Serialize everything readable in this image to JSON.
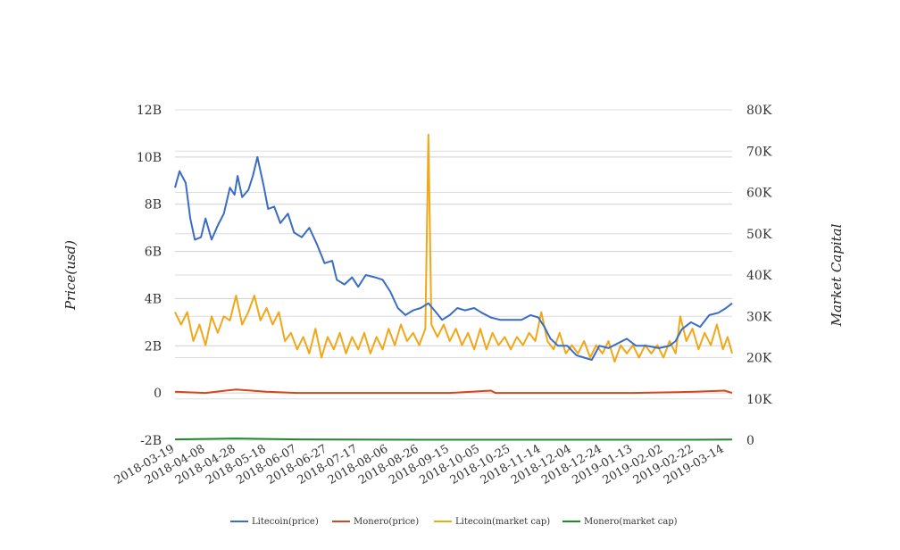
{
  "chart_data": {
    "type": "line",
    "title": "",
    "xlabel": "",
    "ylabel": "Price(usd)",
    "y2label": "Market Capital",
    "legend_position": "bottom",
    "grid": true,
    "x_ticks": [
      "2018-03-19",
      "2018-04-08",
      "2018-04-28",
      "2018-05-18",
      "2018-06-07",
      "2018-06-27",
      "2018-07-17",
      "2018-08-06",
      "2018-08-26",
      "2018-09-15",
      "2018-10-05",
      "2018-10-25",
      "2018-11-14",
      "2018-12-04",
      "2018-12-24",
      "2019-01-13",
      "2019-02-02",
      "2019-02-22",
      "2019-03-14"
    ],
    "y_ticks": [
      "-2B",
      "0",
      "2B",
      "4B",
      "6B",
      "8B",
      "10B",
      "12B"
    ],
    "y2_ticks": [
      "0",
      "10K",
      "20K",
      "30K",
      "40K",
      "50K",
      "60K",
      "70K",
      "80K"
    ],
    "ylim": [
      -2000000000,
      12000000000
    ],
    "y2lim": [
      0,
      80000
    ],
    "x_range": [
      "2018-03-19",
      "2019-03-19"
    ],
    "series": [
      {
        "name": "Litecoin(price)",
        "color": "#3b6cc4",
        "axis": "left",
        "points": [
          [
            "2018-03-19",
            8700000000.0
          ],
          [
            "2018-03-22",
            9400000000.0
          ],
          [
            "2018-03-26",
            8900000000.0
          ],
          [
            "2018-03-29",
            7400000000.0
          ],
          [
            "2018-04-01",
            6500000000.0
          ],
          [
            "2018-04-05",
            6600000000.0
          ],
          [
            "2018-04-08",
            7400000000.0
          ],
          [
            "2018-04-12",
            6500000000.0
          ],
          [
            "2018-04-16",
            7100000000.0
          ],
          [
            "2018-04-20",
            7600000000.0
          ],
          [
            "2018-04-24",
            8700000000.0
          ],
          [
            "2018-04-27",
            8400000000.0
          ],
          [
            "2018-04-29",
            9200000000.0
          ],
          [
            "2018-05-02",
            8300000000.0
          ],
          [
            "2018-05-06",
            8600000000.0
          ],
          [
            "2018-05-09",
            9200000000.0
          ],
          [
            "2018-05-12",
            10000000000.0
          ],
          [
            "2018-05-16",
            8800000000.0
          ],
          [
            "2018-05-19",
            7800000000.0
          ],
          [
            "2018-05-23",
            7900000000.0
          ],
          [
            "2018-05-27",
            7200000000.0
          ],
          [
            "2018-06-01",
            7600000000.0
          ],
          [
            "2018-06-05",
            6800000000.0
          ],
          [
            "2018-06-10",
            6600000000.0
          ],
          [
            "2018-06-15",
            7000000000.0
          ],
          [
            "2018-06-20",
            6300000000.0
          ],
          [
            "2018-06-25",
            5500000000.0
          ],
          [
            "2018-06-30",
            5600000000.0
          ],
          [
            "2018-07-03",
            4800000000.0
          ],
          [
            "2018-07-08",
            4600000000.0
          ],
          [
            "2018-07-13",
            4900000000.0
          ],
          [
            "2018-07-17",
            4500000000.0
          ],
          [
            "2018-07-22",
            5000000000.0
          ],
          [
            "2018-07-28",
            4900000000.0
          ],
          [
            "2018-08-02",
            4800000000.0
          ],
          [
            "2018-08-07",
            4300000000.0
          ],
          [
            "2018-08-12",
            3600000000.0
          ],
          [
            "2018-08-17",
            3300000000.0
          ],
          [
            "2018-08-22",
            3500000000.0
          ],
          [
            "2018-08-27",
            3600000000.0
          ],
          [
            "2018-09-01",
            3800000000.0
          ],
          [
            "2018-09-05",
            3500000000.0
          ],
          [
            "2018-09-10",
            3100000000.0
          ],
          [
            "2018-09-15",
            3300000000.0
          ],
          [
            "2018-09-20",
            3600000000.0
          ],
          [
            "2018-09-25",
            3500000000.0
          ],
          [
            "2018-10-01",
            3600000000.0
          ],
          [
            "2018-10-06",
            3400000000.0
          ],
          [
            "2018-10-12",
            3200000000.0
          ],
          [
            "2018-10-18",
            3100000000.0
          ],
          [
            "2018-10-25",
            3100000000.0
          ],
          [
            "2018-11-01",
            3100000000.0
          ],
          [
            "2018-11-07",
            3300000000.0
          ],
          [
            "2018-11-12",
            3200000000.0
          ],
          [
            "2018-11-16",
            2800000000.0
          ],
          [
            "2018-11-20",
            2300000000.0
          ],
          [
            "2018-11-25",
            2000000000.0
          ],
          [
            "2018-12-01",
            2000000000.0
          ],
          [
            "2018-12-07",
            1600000000.0
          ],
          [
            "2018-12-12",
            1500000000.0
          ],
          [
            "2018-12-17",
            1400000000.0
          ],
          [
            "2018-12-22",
            2000000000.0
          ],
          [
            "2018-12-28",
            1900000000.0
          ],
          [
            "2019-01-03",
            2100000000.0
          ],
          [
            "2019-01-09",
            2300000000.0
          ],
          [
            "2019-01-15",
            2000000000.0
          ],
          [
            "2019-01-22",
            2000000000.0
          ],
          [
            "2019-01-30",
            1900000000.0
          ],
          [
            "2019-02-06",
            2000000000.0
          ],
          [
            "2019-02-10",
            2200000000.0
          ],
          [
            "2019-02-14",
            2700000000.0
          ],
          [
            "2019-02-20",
            3000000000.0
          ],
          [
            "2019-02-26",
            2800000000.0
          ],
          [
            "2019-03-04",
            3300000000.0
          ],
          [
            "2019-03-10",
            3400000000.0
          ],
          [
            "2019-03-15",
            3600000000.0
          ],
          [
            "2019-03-19",
            3800000000.0
          ]
        ]
      },
      {
        "name": "Monero(price)",
        "color": "#d4471a",
        "axis": "left",
        "points": [
          [
            "2018-03-19",
            50000000.0
          ],
          [
            "2018-04-08",
            0.0
          ],
          [
            "2018-04-28",
            150000000.0
          ],
          [
            "2018-05-18",
            50000000.0
          ],
          [
            "2018-06-07",
            0.0
          ],
          [
            "2018-07-17",
            0.0
          ],
          [
            "2018-08-26",
            0.0
          ],
          [
            "2018-09-15",
            0.0
          ],
          [
            "2018-10-12",
            100000000.0
          ],
          [
            "2018-10-15",
            0.0
          ],
          [
            "2018-12-04",
            0.0
          ],
          [
            "2019-01-13",
            0.0
          ],
          [
            "2019-02-22",
            50000000.0
          ],
          [
            "2019-03-14",
            100000000.0
          ],
          [
            "2019-03-19",
            0.0
          ]
        ]
      },
      {
        "name": "Litecoin(market cap)",
        "color": "#f0a818",
        "axis": "right",
        "points": [
          [
            "2018-03-19",
            31000
          ],
          [
            "2018-03-23",
            28000
          ],
          [
            "2018-03-27",
            31000
          ],
          [
            "2018-03-31",
            24000
          ],
          [
            "2018-04-04",
            28000
          ],
          [
            "2018-04-08",
            23000
          ],
          [
            "2018-04-12",
            30000
          ],
          [
            "2018-04-16",
            26000
          ],
          [
            "2018-04-20",
            30000
          ],
          [
            "2018-04-24",
            29000
          ],
          [
            "2018-04-28",
            35000
          ],
          [
            "2018-05-02",
            28000
          ],
          [
            "2018-05-06",
            31000
          ],
          [
            "2018-05-10",
            35000
          ],
          [
            "2018-05-14",
            29000
          ],
          [
            "2018-05-18",
            32000
          ],
          [
            "2018-05-22",
            28000
          ],
          [
            "2018-05-26",
            31000
          ],
          [
            "2018-05-30",
            24000
          ],
          [
            "2018-06-03",
            26000
          ],
          [
            "2018-06-07",
            22000
          ],
          [
            "2018-06-11",
            25000
          ],
          [
            "2018-06-15",
            21000
          ],
          [
            "2018-06-19",
            27000
          ],
          [
            "2018-06-23",
            20000
          ],
          [
            "2018-06-27",
            25000
          ],
          [
            "2018-07-01",
            22000
          ],
          [
            "2018-07-05",
            26000
          ],
          [
            "2018-07-09",
            21000
          ],
          [
            "2018-07-13",
            25000
          ],
          [
            "2018-07-17",
            22000
          ],
          [
            "2018-07-21",
            26000
          ],
          [
            "2018-07-25",
            21000
          ],
          [
            "2018-07-29",
            25000
          ],
          [
            "2018-08-02",
            22000
          ],
          [
            "2018-08-06",
            27000
          ],
          [
            "2018-08-10",
            23000
          ],
          [
            "2018-08-14",
            28000
          ],
          [
            "2018-08-18",
            24000
          ],
          [
            "2018-08-22",
            26000
          ],
          [
            "2018-08-26",
            23000
          ],
          [
            "2018-08-30",
            27000
          ],
          [
            "2018-09-01",
            74000
          ],
          [
            "2018-09-03",
            28000
          ],
          [
            "2018-09-07",
            25000
          ],
          [
            "2018-09-11",
            28000
          ],
          [
            "2018-09-15",
            24000
          ],
          [
            "2018-09-19",
            27000
          ],
          [
            "2018-09-23",
            23000
          ],
          [
            "2018-09-27",
            26000
          ],
          [
            "2018-10-01",
            22000
          ],
          [
            "2018-10-05",
            27000
          ],
          [
            "2018-10-09",
            22000
          ],
          [
            "2018-10-13",
            26000
          ],
          [
            "2018-10-17",
            23000
          ],
          [
            "2018-10-21",
            25000
          ],
          [
            "2018-10-25",
            22000
          ],
          [
            "2018-10-29",
            25000
          ],
          [
            "2018-11-02",
            23000
          ],
          [
            "2018-11-06",
            26000
          ],
          [
            "2018-11-10",
            24000
          ],
          [
            "2018-11-14",
            31000
          ],
          [
            "2018-11-18",
            24000
          ],
          [
            "2018-11-22",
            22000
          ],
          [
            "2018-11-26",
            26000
          ],
          [
            "2018-11-30",
            21000
          ],
          [
            "2018-12-04",
            23000
          ],
          [
            "2018-12-08",
            21000
          ],
          [
            "2018-12-12",
            24000
          ],
          [
            "2018-12-16",
            20000
          ],
          [
            "2018-12-20",
            23000
          ],
          [
            "2018-12-24",
            21000
          ],
          [
            "2018-12-28",
            24000
          ],
          [
            "2019-01-01",
            19000
          ],
          [
            "2019-01-05",
            23000
          ],
          [
            "2019-01-09",
            21000
          ],
          [
            "2019-01-13",
            23000
          ],
          [
            "2019-01-17",
            20000
          ],
          [
            "2019-01-21",
            23000
          ],
          [
            "2019-01-25",
            21000
          ],
          [
            "2019-01-29",
            23000
          ],
          [
            "2019-02-02",
            20000
          ],
          [
            "2019-02-06",
            24000
          ],
          [
            "2019-02-10",
            21000
          ],
          [
            "2019-02-13",
            30000
          ],
          [
            "2019-02-17",
            24000
          ],
          [
            "2019-02-21",
            27000
          ],
          [
            "2019-02-25",
            22000
          ],
          [
            "2019-03-01",
            26000
          ],
          [
            "2019-03-05",
            23000
          ],
          [
            "2019-03-09",
            28000
          ],
          [
            "2019-03-13",
            22000
          ],
          [
            "2019-03-16",
            25000
          ],
          [
            "2019-03-19",
            21000
          ]
        ]
      },
      {
        "name": "Monero(market cap)",
        "color": "#1e8c2e",
        "axis": "right",
        "points": [
          [
            "2018-03-19",
            200
          ],
          [
            "2018-04-28",
            400
          ],
          [
            "2018-06-07",
            200
          ],
          [
            "2018-08-26",
            100
          ],
          [
            "2018-10-25",
            100
          ],
          [
            "2018-12-24",
            100
          ],
          [
            "2019-02-22",
            100
          ],
          [
            "2019-03-19",
            150
          ]
        ]
      }
    ]
  }
}
